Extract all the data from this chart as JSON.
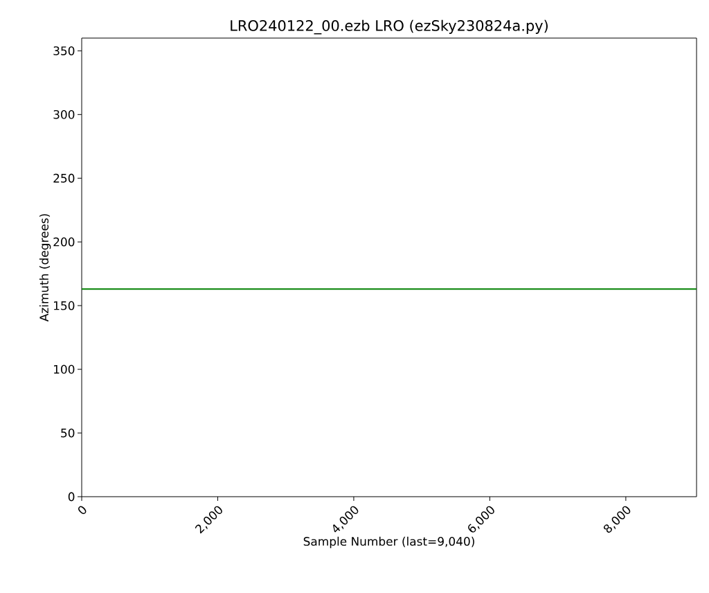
{
  "chart_data": {
    "type": "line",
    "title": "LRO240122_00.ezb LRO (ezSky230824a.py)",
    "xlabel": "Sample Number (last=9,040)",
    "ylabel": "Azimuth (degrees)",
    "x": [
      0,
      9040
    ],
    "series": [
      {
        "color": "#008000",
        "values": [
          163,
          163
        ]
      }
    ],
    "xlim": [
      0,
      9040
    ],
    "ylim": [
      0,
      360
    ],
    "xticks": [
      0,
      {
        "value": 2000,
        "label": "2,000"
      },
      {
        "value": 4000,
        "label": "4,000"
      },
      {
        "value": 6000,
        "label": "6,000"
      },
      {
        "value": 8000,
        "label": "8,000"
      }
    ],
    "yticks": [
      0,
      50,
      100,
      150,
      200,
      250,
      300,
      350
    ],
    "grid": false,
    "marker": "none",
    "line_style": "solid"
  }
}
